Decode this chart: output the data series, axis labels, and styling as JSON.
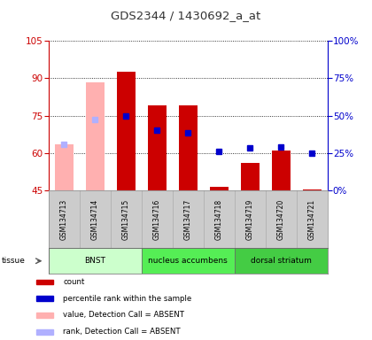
{
  "title": "GDS2344 / 1430692_a_at",
  "samples": [
    "GSM134713",
    "GSM134714",
    "GSM134715",
    "GSM134716",
    "GSM134717",
    "GSM134718",
    "GSM134719",
    "GSM134720",
    "GSM134721"
  ],
  "ylim_left": [
    45,
    105
  ],
  "ylim_right": [
    0,
    100
  ],
  "yticks_left": [
    45,
    60,
    75,
    90,
    105
  ],
  "yticks_right": [
    0,
    25,
    50,
    75,
    100
  ],
  "ytick_labels_right": [
    "0%",
    "25%",
    "50%",
    "75%",
    "100%"
  ],
  "count_values": [
    null,
    null,
    92.5,
    79,
    79,
    46.5,
    56,
    61,
    45.5
  ],
  "rank_values": [
    null,
    null,
    75,
    69,
    68,
    60.5,
    62,
    62.5,
    60
  ],
  "absent_value_values": [
    63.5,
    88.5,
    null,
    null,
    null,
    null,
    null,
    null,
    null
  ],
  "absent_rank_values": [
    63.5,
    73.5,
    null,
    null,
    null,
    null,
    null,
    null,
    null
  ],
  "bar_bottom": 45,
  "count_color": "#cc0000",
  "rank_color": "#0000cc",
  "absent_value_color": "#ffb0b0",
  "absent_rank_color": "#b0b0ff",
  "tissue_groups": [
    {
      "label": "BNST",
      "start": 0,
      "end": 3,
      "color": "#ccffcc"
    },
    {
      "label": "nucleus accumbens",
      "start": 3,
      "end": 6,
      "color": "#55ee55"
    },
    {
      "label": "dorsal striatum",
      "start": 6,
      "end": 9,
      "color": "#44cc44"
    }
  ],
  "legend_items": [
    {
      "color": "#cc0000",
      "label": "count"
    },
    {
      "color": "#0000cc",
      "label": "percentile rank within the sample"
    },
    {
      "color": "#ffb0b0",
      "label": "value, Detection Call = ABSENT"
    },
    {
      "color": "#b0b0ff",
      "label": "rank, Detection Call = ABSENT"
    }
  ],
  "sample_box_color": "#cccccc",
  "bg_color": "#ffffff",
  "left_axis_color": "#cc0000",
  "right_axis_color": "#0000cc"
}
